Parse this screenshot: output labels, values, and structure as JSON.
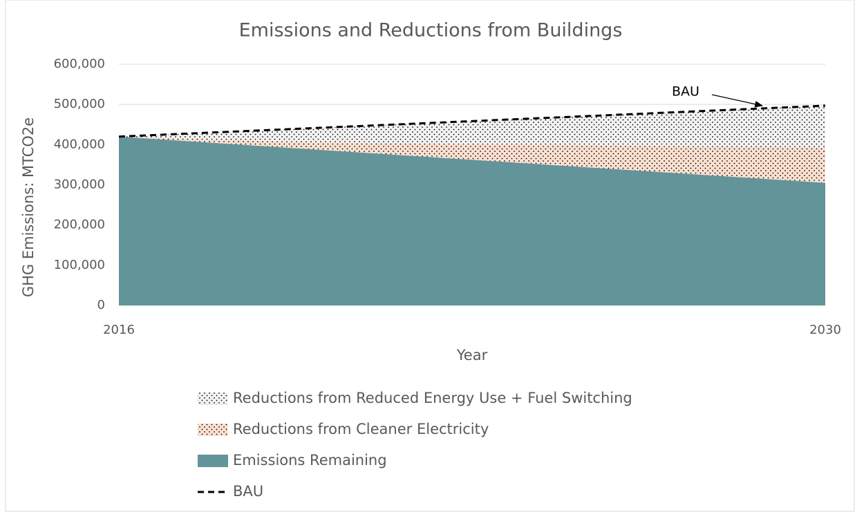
{
  "chart_data": {
    "type": "area",
    "title": "Emissions and Reductions from Buildings",
    "x_label": "Year",
    "y_label": "GHG Emissions:  MTCO2e",
    "x": [
      2016,
      2020,
      2030
    ],
    "series": [
      {
        "name": "Reductions from Reduced Energy Use + Fuel Switching",
        "color": "#f2f2f2",
        "pattern": "dots",
        "values": [
          0,
          37000,
          104000
        ]
      },
      {
        "name": "Reductions from Cleaner Electricity",
        "color": "#fbe0d0",
        "pattern": "dots",
        "values": [
          0,
          18000,
          88000
        ]
      },
      {
        "name": "Emissions Remaining",
        "color": "#62949a",
        "values": [
          420000,
          387000,
          305000
        ]
      },
      {
        "name": "BAU",
        "kind": "line",
        "dash": true,
        "color": "#000000",
        "values": [
          420000,
          442000,
          497000
        ]
      }
    ],
    "annotation": "BAU",
    "xlim": [
      2016,
      2030
    ],
    "xticks": [
      2016,
      2030
    ],
    "ylim": [
      0,
      600000
    ],
    "yticks": [
      {
        "value": 0,
        "label": "0"
      },
      {
        "value": 100000,
        "label": "100,000"
      },
      {
        "value": 200000,
        "label": "200,000"
      },
      {
        "value": 300000,
        "label": "300,000"
      },
      {
        "value": 400000,
        "label": "400,000"
      },
      {
        "value": 500000,
        "label": "500,000"
      },
      {
        "value": 600000,
        "label": "600,000"
      }
    ],
    "grid": true
  }
}
